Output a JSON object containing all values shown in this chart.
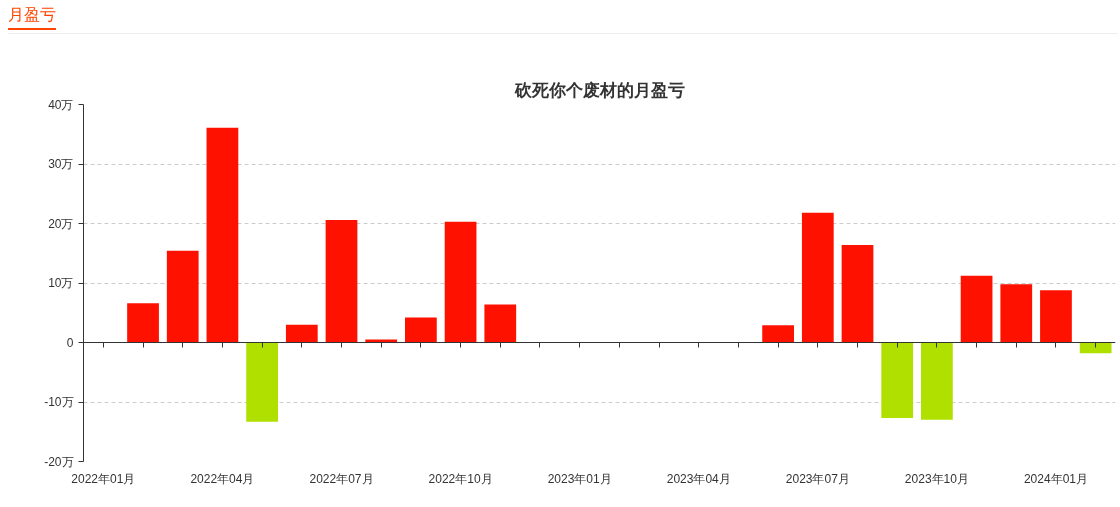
{
  "chart_data": {
    "type": "bar",
    "title": "砍死你个废材的月盈亏",
    "annotations": [
      "月盈亏"
    ],
    "categories": [
      "2022年01月",
      null,
      null,
      "2022年04月",
      null,
      null,
      "2022年07月",
      null,
      null,
      "2022年10月",
      null,
      null,
      "2023年01月",
      null,
      null,
      "2023年04月",
      null,
      null,
      "2023年07月",
      null,
      null,
      "2023年10月",
      null,
      null,
      "2024年01月",
      null
    ],
    "values": [
      0,
      6.6,
      15.4,
      36.1,
      -13.3,
      3.0,
      20.6,
      0.5,
      4.2,
      20.3,
      6.4,
      0,
      0,
      0,
      0,
      0,
      0,
      2.9,
      21.8,
      16.4,
      -12.7,
      -13.0,
      11.2,
      9.8,
      8.8,
      -1.8
    ],
    "colors": [
      "#ff1100",
      "#ff1100",
      "#ff1100",
      "#ff1100",
      "#b0e000",
      "#ff1100",
      "#ff1100",
      "#ff1100",
      "#ff1100",
      "#ff1100",
      "#ff1100",
      "#ff1100",
      "#ff1100",
      "#ff1100",
      "#ff1100",
      "#ff1100",
      "#ff1100",
      "#ff1100",
      "#ff1100",
      "#ff1100",
      "#b0e000",
      "#b0e000",
      "#ff1100",
      "#ff1100",
      "#ff1100",
      "#b0e000"
    ],
    "ylim": [
      -20,
      40
    ],
    "yticks": [
      {
        "value": -20,
        "label": "-20万"
      },
      {
        "value": -10,
        "label": "-10万"
      },
      0,
      {
        "value": 10,
        "label": "10万"
      },
      {
        "value": 20,
        "label": "20万"
      },
      {
        "value": 30,
        "label": "30万"
      },
      {
        "value": 40,
        "label": "40万"
      }
    ],
    "grid": "y"
  }
}
